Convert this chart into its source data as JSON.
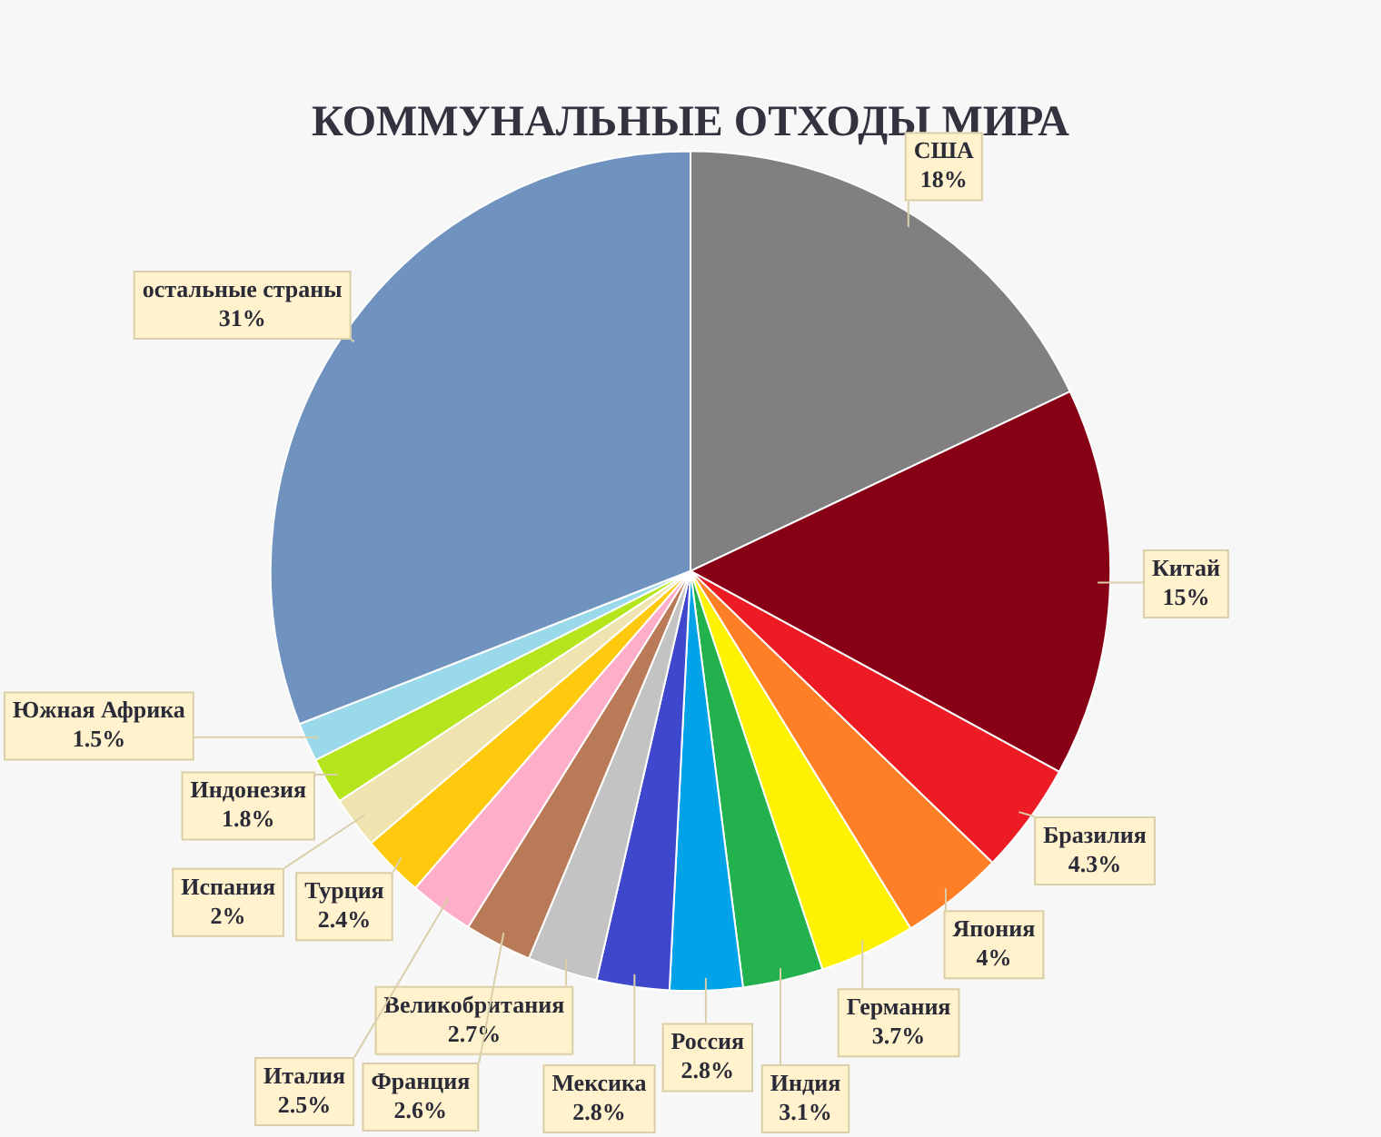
{
  "chart_data": {
    "type": "pie",
    "title": "КОММУНАЛЬНЫЕ ОТХОДЫ МИРА",
    "categories": [
      "США",
      "Китай",
      "Бразилия",
      "Япония",
      "Германия",
      "Индия",
      "Россия",
      "Мексика",
      "Великобритания",
      "Франция",
      "Италия",
      "Турция",
      "Испания",
      "Индонезия",
      "Южная Африка",
      "остальные страны"
    ],
    "values": [
      18,
      15,
      4.3,
      4,
      3.7,
      3.1,
      2.8,
      2.8,
      2.7,
      2.6,
      2.5,
      2.4,
      2,
      1.8,
      1.5,
      31
    ],
    "value_labels": [
      "18%",
      "15%",
      "4.3%",
      "4%",
      "3.7%",
      "3.1%",
      "2.8%",
      "2.8%",
      "2.7%",
      "2.6%",
      "2.5%",
      "2.4%",
      "2%",
      "1.8%",
      "1.5%",
      "31%"
    ],
    "colors": [
      "#808080",
      "#880015",
      "#ed1c24",
      "#ff7f27",
      "#fff200",
      "#22b14c",
      "#00a2e8",
      "#3f48cc",
      "#c3c3c3",
      "#b97a57",
      "#ffaec9",
      "#ffc90e",
      "#efe4b0",
      "#b5e61d",
      "#99d9ea",
      "#7092be"
    ]
  }
}
